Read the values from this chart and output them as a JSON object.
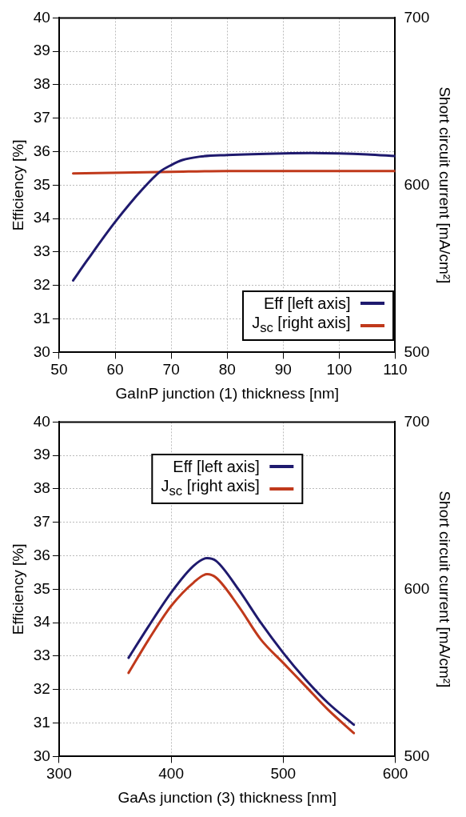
{
  "chart_data": [
    {
      "type": "line",
      "xlabel": "GaInP junction (1) thickness [nm]",
      "ylabel": "Efficiency [%]",
      "y2label": "Short circuit current [mA/cm²]",
      "xlim": [
        50,
        110
      ],
      "xticks": [
        50,
        60,
        70,
        80,
        90,
        100,
        110
      ],
      "ylim": [
        30,
        40
      ],
      "yticks": [
        30,
        31,
        32,
        33,
        34,
        35,
        36,
        37,
        38,
        39,
        40
      ],
      "y2lim": [
        500,
        700
      ],
      "y2ticks": [
        500,
        600,
        700
      ],
      "grid": true,
      "legend": "bottom right",
      "marker": "none",
      "line_style": "solid",
      "series": [
        {
          "name": "Eff [left axis]",
          "color": "#1f1a6e",
          "x": [
            52.5,
            55,
            60,
            65,
            68,
            70,
            72,
            75,
            80,
            90,
            95,
            100,
            105,
            110
          ],
          "values": [
            32.15,
            32.75,
            33.9,
            34.9,
            35.4,
            35.6,
            35.75,
            35.85,
            35.9,
            35.95,
            35.96,
            35.95,
            35.92,
            35.87
          ]
        },
        {
          "name": "J$_{sc}$ [right axis]",
          "color": "#c0391b",
          "axis": "y2",
          "x": [
            52.5,
            70,
            80,
            90,
            100,
            110
          ],
          "values": [
            607,
            608,
            608.5,
            608.5,
            608.5,
            608.4
          ]
        }
      ]
    },
    {
      "type": "line",
      "xlabel": "GaAs junction (3) thickness [nm]",
      "ylabel": "Efficiency [%]",
      "y2label": "Short circuit current [mA/cm²]",
      "xlim": [
        300,
        600
      ],
      "xticks": [
        300,
        400,
        500,
        600
      ],
      "ylim": [
        30,
        40
      ],
      "yticks": [
        30,
        31,
        32,
        33,
        34,
        35,
        36,
        37,
        38,
        39,
        40
      ],
      "y2lim": [
        500,
        700
      ],
      "y2ticks": [
        500,
        600,
        700
      ],
      "grid": true,
      "legend": "top",
      "marker": "none",
      "line_style": "solid",
      "series": [
        {
          "name": "Eff [left axis]",
          "color": "#1f1a6e",
          "x": [
            362,
            380,
            400,
            420,
            432,
            440,
            460,
            480,
            500,
            520,
            540,
            563
          ],
          "values": [
            32.95,
            33.9,
            34.9,
            35.7,
            35.93,
            35.85,
            35.0,
            34.0,
            33.1,
            32.3,
            31.6,
            30.95
          ]
        },
        {
          "name": "J$_{sc}$ [right axis]",
          "color": "#c0391b",
          "axis": "y2",
          "x": [
            362,
            380,
            400,
            420,
            432,
            440,
            460,
            480,
            500,
            520,
            540,
            563
          ],
          "values": [
            550,
            570,
            590,
            604,
            609,
            607,
            590,
            570,
            556,
            542,
            528,
            514
          ]
        }
      ]
    }
  ]
}
